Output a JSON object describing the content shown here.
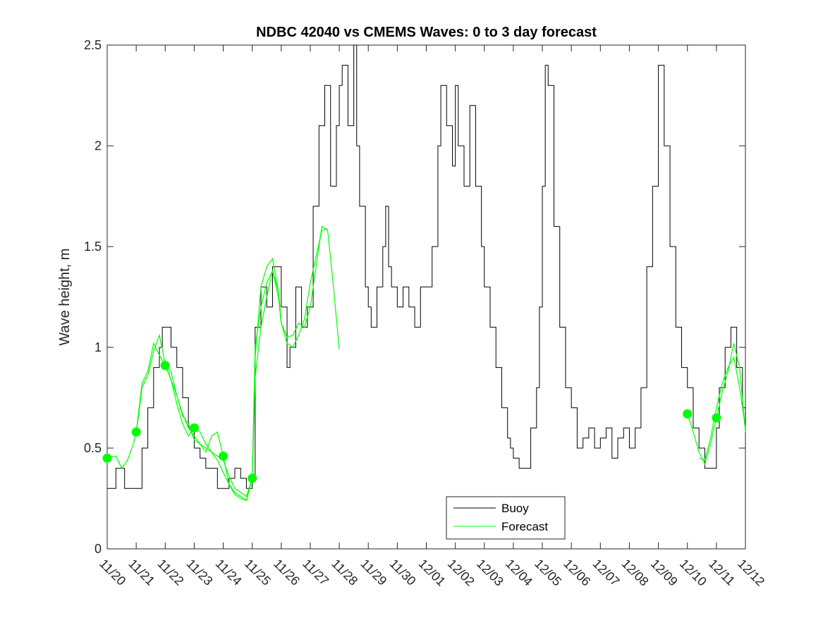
{
  "chart_data": {
    "type": "line",
    "title": "NDBC 42040 vs CMEMS Waves: 0 to 3 day forecast",
    "xlabel": "",
    "ylabel": "Wave height, m",
    "xlim": [
      "11/20",
      "12/12"
    ],
    "ylim": [
      0,
      2.5
    ],
    "yticks": [
      "0",
      "0.5",
      "1",
      "1.5",
      "2",
      "2.5"
    ],
    "xticks": [
      "11/20",
      "11/21",
      "11/22",
      "11/23",
      "11/24",
      "11/25",
      "11/26",
      "11/27",
      "11/28",
      "11/29",
      "11/30",
      "12/01",
      "12/02",
      "12/03",
      "12/04",
      "12/05",
      "12/06",
      "12/07",
      "12/08",
      "12/09",
      "12/10",
      "12/11",
      "12/12"
    ],
    "legend": {
      "position": "bottom-center",
      "entries": [
        "Buoy",
        "Forecast"
      ]
    },
    "colors": {
      "buoy": "#000000",
      "forecast": "#00ff00"
    },
    "series": [
      {
        "name": "Buoy",
        "style": "line",
        "x": [
          0,
          0.3,
          0.6,
          0.9,
          1.0,
          1.2,
          1.4,
          1.6,
          1.8,
          1.9,
          2.0,
          2.2,
          2.4,
          2.6,
          2.8,
          3.0,
          3.2,
          3.4,
          3.6,
          3.8,
          4.0,
          4.2,
          4.4,
          4.6,
          4.8,
          5.0,
          5.1,
          5.3,
          5.5,
          5.7,
          6.0,
          6.2,
          6.3,
          6.5,
          6.7,
          6.9,
          7.1,
          7.3,
          7.5,
          7.7,
          7.9,
          8.0,
          8.1,
          8.3,
          8.5,
          8.6,
          8.7,
          8.9,
          9.0,
          9.1,
          9.3,
          9.5,
          9.6,
          9.7,
          9.8,
          10.0,
          10.2,
          10.4,
          10.6,
          10.8,
          11.0,
          11.2,
          11.4,
          11.5,
          11.7,
          11.9,
          12.0,
          12.1,
          12.3,
          12.5,
          12.7,
          12.9,
          13.0,
          13.2,
          13.4,
          13.6,
          13.8,
          13.9,
          14.0,
          14.2,
          14.4,
          14.6,
          14.8,
          14.9,
          15.0,
          15.1,
          15.2,
          15.4,
          15.6,
          15.8,
          16.0,
          16.2,
          16.4,
          16.6,
          16.8,
          17.0,
          17.2,
          17.4,
          17.6,
          17.8,
          18.0,
          18.2,
          18.4,
          18.6,
          18.8,
          19.0,
          19.2,
          19.4,
          19.6,
          19.8,
          20.0,
          20.2,
          20.4,
          20.6,
          20.8,
          21.0,
          21.1,
          21.3,
          21.5,
          21.7,
          21.9,
          22.0
        ],
        "values": [
          0.3,
          0.4,
          0.3,
          0.3,
          0.3,
          0.5,
          0.7,
          0.9,
          1.0,
          1.1,
          1.1,
          1.0,
          0.9,
          0.75,
          0.6,
          0.5,
          0.45,
          0.4,
          0.4,
          0.3,
          0.3,
          0.35,
          0.4,
          0.35,
          0.3,
          0.35,
          1.1,
          1.3,
          1.2,
          1.4,
          1.2,
          0.9,
          1.0,
          1.3,
          1.1,
          1.2,
          1.7,
          2.1,
          2.3,
          1.8,
          2.1,
          2.3,
          2.4,
          2.1,
          2.5,
          2.0,
          1.7,
          1.3,
          1.2,
          1.1,
          1.3,
          1.5,
          1.7,
          1.4,
          1.3,
          1.2,
          1.3,
          1.2,
          1.1,
          1.3,
          1.3,
          1.5,
          2.0,
          2.3,
          2.1,
          1.9,
          2.3,
          2.0,
          1.8,
          2.2,
          1.8,
          1.5,
          1.3,
          1.1,
          0.9,
          0.7,
          0.55,
          0.5,
          0.45,
          0.4,
          0.4,
          0.6,
          0.8,
          1.2,
          1.8,
          2.4,
          2.3,
          1.6,
          1.1,
          0.8,
          0.7,
          0.5,
          0.55,
          0.6,
          0.5,
          0.55,
          0.6,
          0.45,
          0.55,
          0.6,
          0.5,
          0.6,
          0.8,
          1.4,
          1.8,
          2.4,
          2.0,
          1.5,
          1.1,
          0.9,
          0.8,
          0.6,
          0.5,
          0.4,
          0.4,
          0.6,
          0.8,
          1.0,
          1.1,
          0.9,
          0.7,
          0.6
        ]
      },
      {
        "name": "Forecast",
        "style": "line",
        "segments": [
          {
            "x": [
              0,
              0.3,
              0.5,
              0.7,
              0.9,
              1.0,
              1.1,
              1.2,
              1.4,
              1.6,
              1.8,
              2.0,
              2.2,
              2.4,
              2.6,
              2.8,
              3.0,
              3.2,
              3.4,
              3.6,
              3.8,
              4.0,
              4.2,
              4.4,
              4.6,
              4.8,
              5.0,
              5.1,
              5.3,
              5.5,
              5.7,
              5.9,
              6.0,
              6.2,
              6.4,
              6.6,
              6.8,
              7.0,
              7.2,
              7.4,
              7.6,
              7.8,
              8.0
            ],
            "values": [
              0.45,
              0.46,
              0.4,
              0.44,
              0.52,
              0.58,
              0.68,
              0.8,
              0.86,
              0.98,
              1.06,
              0.92,
              0.84,
              0.76,
              0.67,
              0.6,
              0.56,
              0.52,
              0.5,
              0.48,
              0.44,
              0.38,
              0.32,
              0.27,
              0.25,
              0.24,
              0.35,
              0.85,
              1.1,
              1.25,
              1.38,
              1.25,
              1.12,
              1.05,
              1.06,
              1.12,
              1.1,
              1.2,
              1.4,
              1.6,
              1.58,
              1.3,
              0.99
            ]
          },
          {
            "x": [
              1.0,
              1.2,
              1.4,
              1.6,
              1.8,
              2.0,
              2.2,
              2.4,
              2.6,
              2.8,
              3.0,
              3.2,
              3.4,
              3.6,
              3.8,
              4.0,
              4.2,
              4.4,
              4.6,
              4.8,
              5.0,
              5.1,
              5.3,
              5.5,
              5.7,
              5.9,
              6.0
            ],
            "values": [
              0.58,
              0.82,
              0.88,
              1.02,
              0.96,
              0.91,
              0.84,
              0.72,
              0.62,
              0.56,
              0.6,
              0.58,
              0.52,
              0.48,
              0.46,
              0.44,
              0.36,
              0.3,
              0.28,
              0.26,
              0.35,
              0.95,
              1.3,
              1.4,
              1.44,
              1.28,
              1.13
            ]
          },
          {
            "x": [
              2.0,
              2.2,
              2.4,
              2.6,
              2.8,
              3.0,
              3.2,
              3.4,
              3.6,
              3.8,
              4.0,
              4.2,
              4.4,
              4.6,
              4.8,
              5.0,
              5.1,
              5.3,
              5.5,
              5.7,
              5.9,
              6.0,
              6.2,
              6.4,
              6.6,
              6.8,
              7.0,
              7.2,
              7.4,
              7.6
            ],
            "values": [
              0.91,
              0.88,
              0.76,
              0.66,
              0.62,
              0.54,
              0.52,
              0.48,
              0.56,
              0.58,
              0.46,
              0.32,
              0.28,
              0.26,
              0.24,
              0.35,
              1.0,
              1.2,
              1.32,
              1.38,
              1.28,
              1.12,
              1.02,
              1.0,
              1.06,
              1.14,
              1.32,
              1.45,
              1.58,
              1.59
            ]
          },
          {
            "x": [
              20.0,
              20.2,
              20.4,
              20.6,
              20.8,
              21.0,
              21.2,
              21.4,
              21.6,
              21.8,
              22.0
            ],
            "values": [
              0.67,
              0.58,
              0.48,
              0.42,
              0.52,
              0.65,
              0.78,
              0.88,
              1.02,
              0.9,
              0.58
            ]
          },
          {
            "x": [
              20.4,
              20.6,
              20.8,
              21.0,
              21.2,
              21.4,
              21.6,
              21.8,
              22.0
            ],
            "values": [
              0.45,
              0.44,
              0.55,
              0.7,
              0.82,
              0.9,
              0.95,
              0.8,
              0.6
            ]
          }
        ]
      },
      {
        "name": "",
        "style": "markers",
        "x": [
          0,
          1,
          2,
          3,
          4,
          5,
          20,
          21
        ],
        "values": [
          0.45,
          0.58,
          0.91,
          0.6,
          0.46,
          0.35,
          0.67,
          0.65
        ]
      }
    ],
    "grid": false
  }
}
